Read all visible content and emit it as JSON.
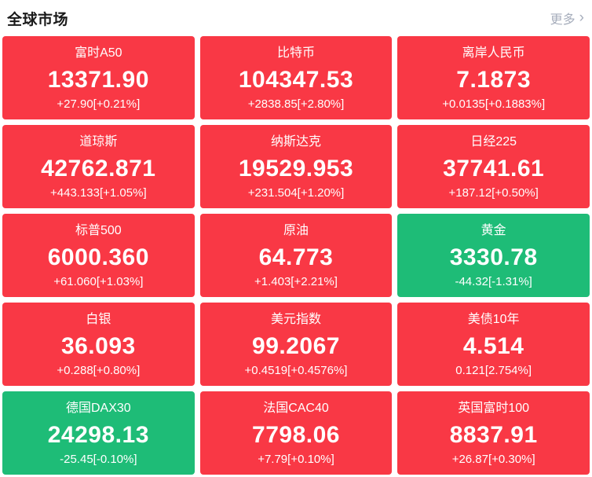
{
  "header": {
    "title": "全球市场",
    "more_label": "更多",
    "more_chevron": "›"
  },
  "colors": {
    "up_red": "#f93845",
    "down_green": "#1ebc77",
    "card_text": "#ffffff",
    "header_text": "#1a1a1a",
    "more_text": "#a7aebc"
  },
  "market_cards": [
    {
      "name": "富时A50",
      "value": "13371.90",
      "change": "+27.90[+0.21%]",
      "direction": "up"
    },
    {
      "name": "比特币",
      "value": "104347.53",
      "change": "+2838.85[+2.80%]",
      "direction": "up"
    },
    {
      "name": "离岸人民币",
      "value": "7.1873",
      "change": "+0.0135[+0.1883%]",
      "direction": "up"
    },
    {
      "name": "道琼斯",
      "value": "42762.871",
      "change": "+443.133[+1.05%]",
      "direction": "up"
    },
    {
      "name": "纳斯达克",
      "value": "19529.953",
      "change": "+231.504[+1.20%]",
      "direction": "up"
    },
    {
      "name": "日经225",
      "value": "37741.61",
      "change": "+187.12[+0.50%]",
      "direction": "up"
    },
    {
      "name": "标普500",
      "value": "6000.360",
      "change": "+61.060[+1.03%]",
      "direction": "up"
    },
    {
      "name": "原油",
      "value": "64.773",
      "change": "+1.403[+2.21%]",
      "direction": "up"
    },
    {
      "name": "黄金",
      "value": "3330.78",
      "change": "-44.32[-1.31%]",
      "direction": "down"
    },
    {
      "name": "白银",
      "value": "36.093",
      "change": "+0.288[+0.80%]",
      "direction": "up"
    },
    {
      "name": "美元指数",
      "value": "99.2067",
      "change": "+0.4519[+0.4576%]",
      "direction": "up"
    },
    {
      "name": "美债10年",
      "value": "4.514",
      "change": "0.121[2.754%]",
      "direction": "up"
    },
    {
      "name": "德国DAX30",
      "value": "24298.13",
      "change": "-25.45[-0.10%]",
      "direction": "down"
    },
    {
      "name": "法国CAC40",
      "value": "7798.06",
      "change": "+7.79[+0.10%]",
      "direction": "up"
    },
    {
      "name": "英国富时100",
      "value": "8837.91",
      "change": "+26.87[+0.30%]",
      "direction": "up"
    }
  ]
}
